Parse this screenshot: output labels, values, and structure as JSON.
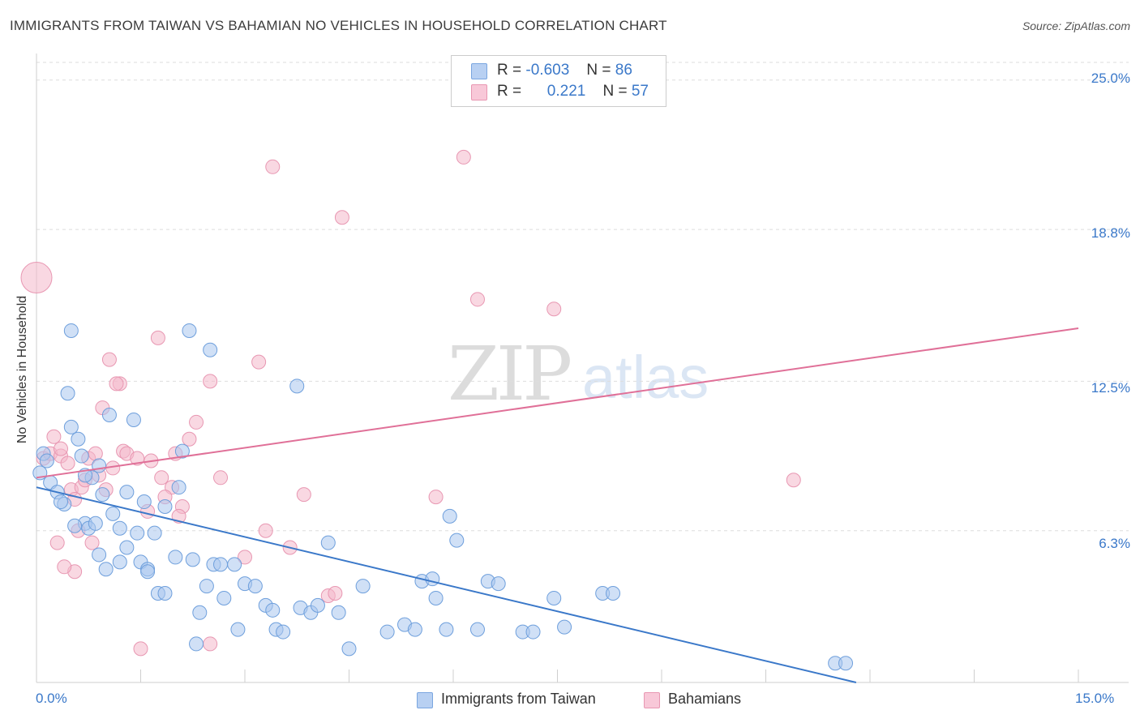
{
  "title": "IMMIGRANTS FROM TAIWAN VS BAHAMIAN NO VEHICLES IN HOUSEHOLD CORRELATION CHART",
  "source": "Source: ZipAtlas.com",
  "watermark": {
    "zip": "ZIP",
    "atlas": "atlas"
  },
  "colors": {
    "blue": "#3a78c9",
    "blue_fill": "#a9c6ee",
    "pink": "#e07098",
    "pink_fill": "#f4b8cb",
    "grid": "#dddddd"
  },
  "legend": {
    "rows": [
      {
        "r_label": "R =",
        "r_value": "-0.603",
        "n_label": "N =",
        "n_value": "86"
      },
      {
        "r_label": "R =",
        "r_value": "0.221",
        "n_label": "N =",
        "n_value": "57"
      }
    ]
  },
  "bottom_legend": {
    "blue": "Immigrants from Taiwan",
    "pink": "Bahamians"
  },
  "chart_data": {
    "type": "scatter",
    "title": "IMMIGRANTS FROM TAIWAN VS BAHAMIAN NO VEHICLES IN HOUSEHOLD CORRELATION CHART",
    "xlabel": "",
    "ylabel": "No Vehicles in Household",
    "xlim": [
      0,
      15
    ],
    "ylim": [
      0,
      25.8
    ],
    "x_tick_labels": [
      "0.0%",
      "15.0%"
    ],
    "y_ticks": [
      6.3,
      12.5,
      18.8,
      25.0
    ],
    "y_tick_labels": [
      "6.3%",
      "12.5%",
      "18.8%",
      "25.0%"
    ],
    "grid": true,
    "legend_position": "top-center",
    "series": [
      {
        "name": "Immigrants from Taiwan",
        "color": "#3a78c9",
        "r": -0.603,
        "n": 86,
        "trend": [
          [
            0,
            8.1
          ],
          [
            11.8,
            0
          ]
        ],
        "points": [
          [
            0.05,
            8.7
          ],
          [
            0.1,
            9.5
          ],
          [
            0.15,
            9.2
          ],
          [
            0.2,
            8.3
          ],
          [
            0.3,
            7.9
          ],
          [
            0.5,
            14.6
          ],
          [
            0.45,
            12.0
          ],
          [
            0.6,
            10.1
          ],
          [
            0.5,
            10.6
          ],
          [
            0.65,
            9.4
          ],
          [
            0.8,
            8.5
          ],
          [
            0.7,
            8.6
          ],
          [
            0.9,
            9.0
          ],
          [
            0.4,
            7.4
          ],
          [
            0.7,
            6.6
          ],
          [
            0.95,
            7.8
          ],
          [
            1.05,
            11.1
          ],
          [
            1.3,
            7.9
          ],
          [
            1.4,
            10.9
          ],
          [
            1.55,
            7.5
          ],
          [
            1.2,
            6.4
          ],
          [
            1.3,
            5.6
          ],
          [
            1.45,
            6.2
          ],
          [
            1.5,
            5.0
          ],
          [
            1.6,
            4.7
          ],
          [
            1.2,
            5.0
          ],
          [
            1.0,
            4.7
          ],
          [
            0.9,
            5.3
          ],
          [
            0.55,
            6.5
          ],
          [
            0.75,
            6.4
          ],
          [
            0.85,
            6.6
          ],
          [
            1.1,
            7.0
          ],
          [
            1.75,
            3.7
          ],
          [
            1.85,
            3.7
          ],
          [
            1.7,
            6.2
          ],
          [
            1.6,
            4.6
          ],
          [
            2.2,
            14.6
          ],
          [
            2.5,
            13.8
          ],
          [
            2.1,
            9.6
          ],
          [
            2.05,
            8.1
          ],
          [
            2.0,
            5.2
          ],
          [
            2.25,
            5.1
          ],
          [
            2.35,
            2.9
          ],
          [
            2.45,
            4.0
          ],
          [
            2.55,
            4.9
          ],
          [
            2.65,
            4.9
          ],
          [
            2.7,
            3.5
          ],
          [
            2.85,
            4.9
          ],
          [
            2.9,
            2.2
          ],
          [
            3.0,
            4.1
          ],
          [
            3.15,
            4.0
          ],
          [
            3.3,
            3.2
          ],
          [
            3.45,
            2.2
          ],
          [
            3.55,
            2.1
          ],
          [
            3.75,
            12.3
          ],
          [
            3.8,
            3.1
          ],
          [
            3.95,
            2.9
          ],
          [
            4.05,
            3.2
          ],
          [
            4.2,
            5.8
          ],
          [
            4.35,
            2.9
          ],
          [
            4.5,
            1.4
          ],
          [
            4.7,
            4.0
          ],
          [
            5.05,
            2.1
          ],
          [
            5.3,
            2.4
          ],
          [
            5.55,
            4.2
          ],
          [
            5.75,
            3.5
          ],
          [
            5.9,
            2.2
          ],
          [
            5.95,
            6.9
          ],
          [
            6.05,
            5.9
          ],
          [
            6.35,
            2.2
          ],
          [
            6.5,
            4.2
          ],
          [
            6.65,
            4.1
          ],
          [
            7.0,
            2.1
          ],
          [
            7.15,
            2.1
          ],
          [
            7.45,
            3.5
          ],
          [
            7.6,
            2.3
          ],
          [
            8.15,
            3.7
          ],
          [
            8.3,
            3.7
          ],
          [
            1.85,
            7.3
          ],
          [
            0.35,
            7.5
          ],
          [
            5.7,
            4.3
          ],
          [
            5.45,
            2.2
          ],
          [
            3.4,
            3.0
          ],
          [
            2.3,
            1.6
          ],
          [
            11.5,
            0.8
          ],
          [
            11.65,
            0.8
          ]
        ]
      },
      {
        "name": "Bahamians",
        "color": "#e07098",
        "r": 0.221,
        "n": 57,
        "trend": [
          [
            0,
            8.5
          ],
          [
            15,
            14.7
          ]
        ],
        "points": [
          [
            0.0,
            16.8
          ],
          [
            0.1,
            9.3
          ],
          [
            0.2,
            9.5
          ],
          [
            0.25,
            10.2
          ],
          [
            0.35,
            9.4
          ],
          [
            0.45,
            9.1
          ],
          [
            0.5,
            8.0
          ],
          [
            0.55,
            7.6
          ],
          [
            0.65,
            8.1
          ],
          [
            0.75,
            9.3
          ],
          [
            0.85,
            9.5
          ],
          [
            0.9,
            8.6
          ],
          [
            1.0,
            8.0
          ],
          [
            1.1,
            8.9
          ],
          [
            1.2,
            12.4
          ],
          [
            1.25,
            9.6
          ],
          [
            0.6,
            6.3
          ],
          [
            0.8,
            5.8
          ],
          [
            0.55,
            4.6
          ],
          [
            1.05,
            13.4
          ],
          [
            1.3,
            9.5
          ],
          [
            1.45,
            9.3
          ],
          [
            1.6,
            7.1
          ],
          [
            1.8,
            8.5
          ],
          [
            1.95,
            8.1
          ],
          [
            2.0,
            9.5
          ],
          [
            2.1,
            7.3
          ],
          [
            2.2,
            10.1
          ],
          [
            2.3,
            10.8
          ],
          [
            2.5,
            12.5
          ],
          [
            2.65,
            8.5
          ],
          [
            3.0,
            5.2
          ],
          [
            3.2,
            13.3
          ],
          [
            3.4,
            21.4
          ],
          [
            3.65,
            5.6
          ],
          [
            3.85,
            7.8
          ],
          [
            4.2,
            3.6
          ],
          [
            4.3,
            3.7
          ],
          [
            4.4,
            19.3
          ],
          [
            5.75,
            7.7
          ],
          [
            6.15,
            21.8
          ],
          [
            6.35,
            15.9
          ],
          [
            7.45,
            15.5
          ],
          [
            10.9,
            8.4
          ],
          [
            1.75,
            14.3
          ],
          [
            1.5,
            1.4
          ],
          [
            2.5,
            1.6
          ],
          [
            0.3,
            5.8
          ],
          [
            0.4,
            4.8
          ],
          [
            2.05,
            6.9
          ],
          [
            3.3,
            6.3
          ],
          [
            1.15,
            12.4
          ],
          [
            0.95,
            11.4
          ],
          [
            1.65,
            9.2
          ],
          [
            0.35,
            9.7
          ],
          [
            0.7,
            8.4
          ],
          [
            1.85,
            7.7
          ]
        ]
      }
    ]
  }
}
